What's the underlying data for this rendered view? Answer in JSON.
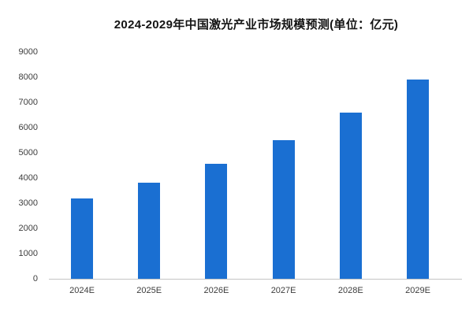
{
  "chart_data": {
    "type": "bar",
    "title": "2024-2029年中国激光产业市场规模预测(单位：亿元)",
    "categories": [
      "2024E",
      "2025E",
      "2026E",
      "2027E",
      "2028E",
      "2029E"
    ],
    "values": [
      3200,
      3800,
      4550,
      5500,
      6600,
      7900
    ],
    "series_name": "市场规模",
    "xlabel": "",
    "ylabel": "",
    "ylim": [
      0,
      9000
    ],
    "ytick_interval": 1000,
    "yticks": [
      "0",
      "1000",
      "2000",
      "3000",
      "4000",
      "5000",
      "6000",
      "7000",
      "8000",
      "9000"
    ],
    "grid": false,
    "legend": "none",
    "bar_color": "#1a6fd2",
    "axis_line_color": "#c4c4c4",
    "title_color": "#141414",
    "tick_label_color": "#3d3d3d",
    "background_color": "#ffffff"
  }
}
